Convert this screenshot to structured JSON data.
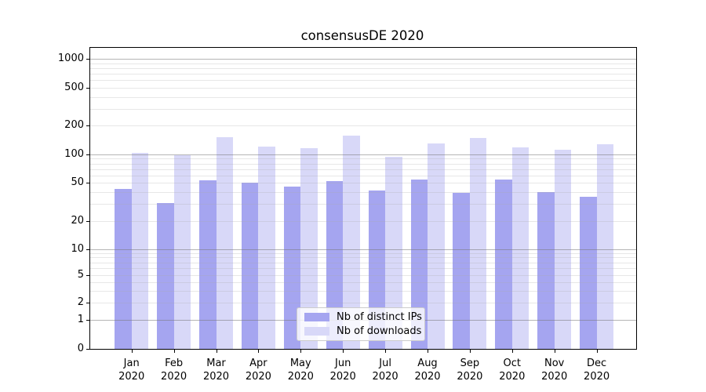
{
  "title": "consensusDE 2020",
  "legend": {
    "items": [
      {
        "label": "Nb of distinct IPs",
        "color": "#a5a5f0"
      },
      {
        "label": "Nb of downloads",
        "color": "#d8d8f8"
      }
    ]
  },
  "y_axis": {
    "tick_labels": [
      "1000",
      "500",
      "200",
      "100",
      "50",
      "20",
      "10",
      "5",
      "2",
      "1",
      "0"
    ]
  },
  "x_axis": {
    "year": "2020",
    "months": [
      "Jan",
      "Feb",
      "Mar",
      "Apr",
      "May",
      "Jun",
      "Jul",
      "Aug",
      "Sep",
      "Oct",
      "Nov",
      "Dec"
    ]
  },
  "chart_data": {
    "type": "bar",
    "title": "consensusDE 2020",
    "x": [
      "Jan 2020",
      "Feb 2020",
      "Mar 2020",
      "Apr 2020",
      "May 2020",
      "Jun 2020",
      "Jul 2020",
      "Aug 2020",
      "Sep 2020",
      "Oct 2020",
      "Nov 2020",
      "Dec 2020"
    ],
    "series": [
      {
        "name": "Nb of distinct IPs",
        "color": "#a5a5f0",
        "values": [
          43,
          31,
          53,
          50,
          46,
          52,
          42,
          54,
          39,
          54,
          40,
          36
        ]
      },
      {
        "name": "Nb of downloads",
        "color": "#d8d8f8",
        "values": [
          103,
          98,
          152,
          120,
          116,
          156,
          94,
          130,
          149,
          118,
          112,
          127
        ]
      }
    ],
    "y_scale": "symlog",
    "y_ticks": [
      0,
      1,
      2,
      5,
      10,
      20,
      50,
      100,
      200,
      500,
      1000
    ],
    "ylim": [
      0,
      1300
    ],
    "grid": "major lines at powers of 10, faint log minors, drawn over bars",
    "legend_position": "lower center"
  }
}
